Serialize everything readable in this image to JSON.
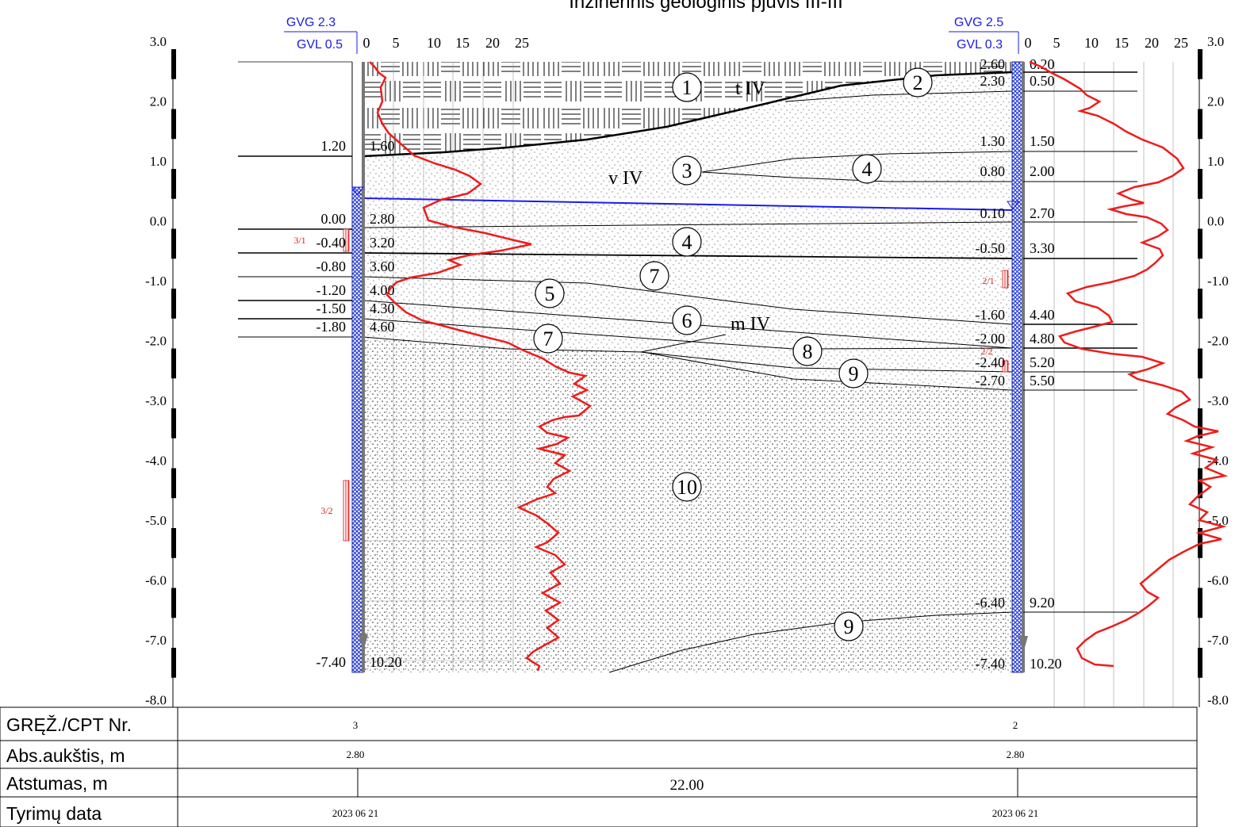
{
  "title": "Inžinerinis geologinis pjūvis III-III",
  "elev_scale": {
    "labels": [
      "3.0",
      "2.0",
      "1.0",
      "0.0",
      "-1.0",
      "-2.0",
      "-3.0",
      "-4.0",
      "-5.0",
      "-6.0",
      "-7.0",
      "-8.0"
    ],
    "right_labels": [
      "3.0",
      "2.0",
      "1.0",
      "0.0",
      "-1.0",
      "-2.0",
      "-3.0",
      "-4.0",
      "-5.0",
      "-6.0",
      "-7.0",
      "-8.0"
    ]
  },
  "cpt_scale": {
    "ticks": [
      "0",
      "5",
      "10",
      "15",
      "20",
      "25"
    ]
  },
  "boreholes": [
    {
      "id": "3",
      "gvg": "GVG 2.3",
      "gvl": "GVL 0.5",
      "abs": "2.80",
      "date": "2023 06 21",
      "depth_labels": [
        "1.60",
        "2.80",
        "3.20",
        "3.60",
        "4.00",
        "4.30",
        "4.60",
        "10.20"
      ],
      "elev_labels": [
        "1.20",
        "0.00",
        "-0.40",
        "-0.80",
        "-1.20",
        "-1.50",
        "-1.80",
        "-7.40"
      ],
      "samples": [
        "3/1",
        "3/2"
      ]
    },
    {
      "id": "2",
      "gvg": "GVG 2.5",
      "gvl": "GVL 0.3",
      "abs": "2.80",
      "date": "2023 06 21",
      "depth_labels": [
        "0.20",
        "0.50",
        "1.50",
        "2.00",
        "2.70",
        "3.30",
        "4.40",
        "4.80",
        "5.20",
        "5.50",
        "9.20",
        "10.20"
      ],
      "elev_labels": [
        "2.60",
        "2.30",
        "1.30",
        "0.80",
        "0.10",
        "-0.50",
        "-1.60",
        "-2.00",
        "-2.40",
        "-2.70",
        "-6.40",
        "-7.40"
      ],
      "samples": [
        "2/1",
        "2/2"
      ]
    }
  ],
  "layers": [
    "1",
    "2",
    "3",
    "4",
    "4",
    "5",
    "6",
    "7",
    "7",
    "8",
    "9",
    "9",
    "10"
  ],
  "ages": [
    "t IV",
    "v IV",
    "m IV"
  ],
  "table": {
    "row_labels": [
      "GRĘŽ./CPT Nr.",
      "Abs.aukštis, m",
      "Atstumas, m",
      "Tyrimų data"
    ],
    "distance": "22.00"
  },
  "colors": {
    "cpt": "#ee1c1c",
    "water": "#1a1aee",
    "borehole_fill": "#2b3fd6",
    "sample": "#e02020"
  }
}
